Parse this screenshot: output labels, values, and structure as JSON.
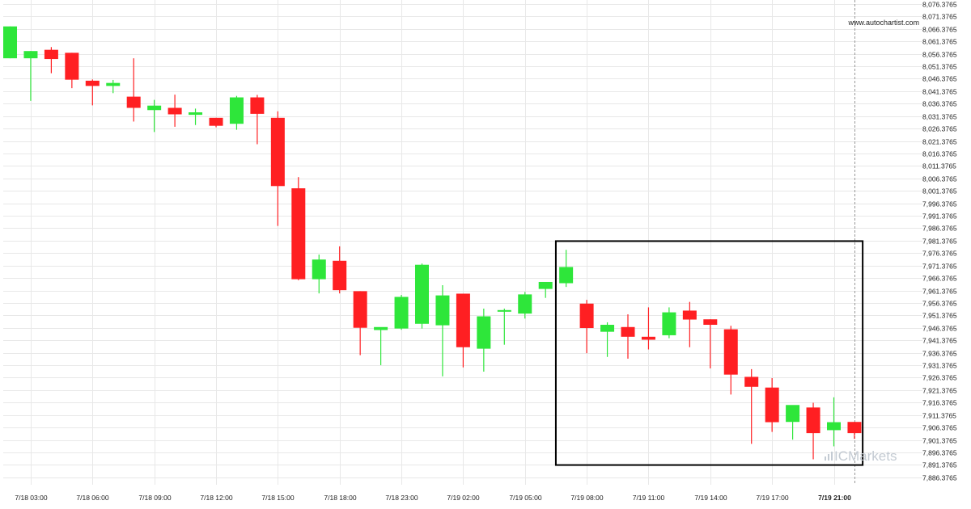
{
  "source_label": "www.autochartist.com",
  "logo": {
    "text": "ICMarkets"
  },
  "colors": {
    "bullish": "#2ee63a",
    "bearish": "#ff1f22",
    "grid": "#e8e8e8",
    "box": "#000000",
    "cursor_line": "#999999"
  },
  "chart_data": {
    "type": "candlestick",
    "ylim": [
      7883.3765,
      8078.0
    ],
    "y_ticks": [
      "8,076.3765",
      "8,071.3765",
      "8,066.3765",
      "8,061.3765",
      "8,056.3765",
      "8,051.3765",
      "8,046.3765",
      "8,041.3765",
      "8,036.3765",
      "8,031.3765",
      "8,026.3765",
      "8,021.3765",
      "8,016.3765",
      "8,011.3765",
      "8,006.3765",
      "8,001.3765",
      "7,996.3765",
      "7,991.3765",
      "7,986.3765",
      "7,981.3765",
      "7,976.3765",
      "7,971.3765",
      "7,966.3765",
      "7,961.3765",
      "7,956.3765",
      "7,951.3765",
      "7,946.3765",
      "7,941.3765",
      "7,936.3765",
      "7,931.3765",
      "7,926.3765",
      "7,921.3765",
      "7,916.3765",
      "7,911.3765",
      "7,906.3765",
      "7,901.3765",
      "7,896.3765",
      "7,891.3765",
      "7,886.3765"
    ],
    "x_ticks": [
      {
        "label": "7/18 03:00",
        "index": 1
      },
      {
        "label": "7/18 06:00",
        "index": 4
      },
      {
        "label": "7/18 09:00",
        "index": 7
      },
      {
        "label": "7/18 12:00",
        "index": 10
      },
      {
        "label": "7/18 15:00",
        "index": 13
      },
      {
        "label": "7/18 18:00",
        "index": 16
      },
      {
        "label": "7/18 23:00",
        "index": 19
      },
      {
        "label": "7/19 02:00",
        "index": 22
      },
      {
        "label": "7/19 05:00",
        "index": 25
      },
      {
        "label": "7/19 08:00",
        "index": 28
      },
      {
        "label": "7/19 11:00",
        "index": 31
      },
      {
        "label": "7/19 14:00",
        "index": 34
      },
      {
        "label": "7/19 17:00",
        "index": 37
      },
      {
        "label": "7/19 21:00",
        "index": 40,
        "bold": true
      }
    ],
    "candles": [
      {
        "o": 8054.6,
        "h": 8067.4,
        "l": 8054.6,
        "c": 8067.4
      },
      {
        "o": 8054.6,
        "h": 8057.5,
        "l": 8037.5,
        "c": 8057.5
      },
      {
        "o": 8058.0,
        "h": 8059.1,
        "l": 8048.6,
        "c": 8054.3
      },
      {
        "o": 8056.8,
        "h": 8056.8,
        "l": 8042.6,
        "c": 8046.0
      },
      {
        "o": 8045.6,
        "h": 8046.1,
        "l": 8035.7,
        "c": 8043.5
      },
      {
        "o": 8043.5,
        "h": 8045.9,
        "l": 8040.6,
        "c": 8044.7
      },
      {
        "o": 8039.2,
        "h": 8054.6,
        "l": 8029.2,
        "c": 8034.7
      },
      {
        "o": 8033.8,
        "h": 8037.9,
        "l": 8025.0,
        "c": 8035.6
      },
      {
        "o": 8034.7,
        "h": 8040.0,
        "l": 8027.1,
        "c": 8032.1
      },
      {
        "o": 8031.9,
        "h": 8034.4,
        "l": 8027.8,
        "c": 8032.9
      },
      {
        "o": 8030.7,
        "h": 8030.7,
        "l": 8026.9,
        "c": 8027.5
      },
      {
        "o": 8028.3,
        "h": 8039.5,
        "l": 8025.9,
        "c": 8038.9
      },
      {
        "o": 8038.9,
        "h": 8039.9,
        "l": 8020.1,
        "c": 8032.3
      },
      {
        "o": 8030.7,
        "h": 8033.3,
        "l": 7987.3,
        "c": 8003.3
      },
      {
        "o": 8002.4,
        "h": 8006.9,
        "l": 7965.5,
        "c": 7965.9
      },
      {
        "o": 7965.9,
        "h": 7975.8,
        "l": 7960.2,
        "c": 7973.8
      },
      {
        "o": 7973.3,
        "h": 7979.1,
        "l": 7960.2,
        "c": 7961.5
      },
      {
        "o": 7961.1,
        "h": 7961.1,
        "l": 7935.4,
        "c": 7946.4
      },
      {
        "o": 7945.5,
        "h": 7946.3,
        "l": 7931.4,
        "c": 7946.7
      },
      {
        "o": 7946.1,
        "h": 7959.6,
        "l": 7945.6,
        "c": 7958.8
      },
      {
        "o": 7948.0,
        "h": 7972.2,
        "l": 7946.1,
        "c": 7971.7
      },
      {
        "o": 7947.4,
        "h": 7963.5,
        "l": 7926.9,
        "c": 7959.4
      },
      {
        "o": 7960.1,
        "h": 7960.1,
        "l": 7930.5,
        "c": 7938.6
      },
      {
        "o": 7938.0,
        "h": 7954.1,
        "l": 7928.8,
        "c": 7951.0
      },
      {
        "o": 7953.2,
        "h": 7954.1,
        "l": 7939.6,
        "c": 7953.5
      },
      {
        "o": 7952.1,
        "h": 7960.8,
        "l": 7950.1,
        "c": 7959.8
      },
      {
        "o": 7962.0,
        "h": 7964.8,
        "l": 7958.4,
        "c": 7964.8
      },
      {
        "o": 7964.3,
        "h": 7977.7,
        "l": 7962.8,
        "c": 7970.8
      },
      {
        "o": 7956.1,
        "h": 7957.6,
        "l": 7936.2,
        "c": 7946.3
      },
      {
        "o": 7944.8,
        "h": 7948.6,
        "l": 7934.7,
        "c": 7947.6
      },
      {
        "o": 7946.7,
        "h": 7951.8,
        "l": 7934.0,
        "c": 7942.8
      },
      {
        "o": 7942.8,
        "h": 7954.6,
        "l": 7937.7,
        "c": 7941.6
      },
      {
        "o": 7943.4,
        "h": 7954.6,
        "l": 7942.2,
        "c": 7952.6
      },
      {
        "o": 7953.3,
        "h": 7956.8,
        "l": 7938.6,
        "c": 7949.7
      },
      {
        "o": 7949.8,
        "h": 7949.8,
        "l": 7930.1,
        "c": 7947.6
      },
      {
        "o": 7945.8,
        "h": 7947.2,
        "l": 7919.6,
        "c": 7927.6
      },
      {
        "o": 7926.7,
        "h": 7929.8,
        "l": 7899.8,
        "c": 7922.7
      },
      {
        "o": 7922.4,
        "h": 7926.2,
        "l": 7904.6,
        "c": 7908.5
      },
      {
        "o": 7908.6,
        "h": 7915.2,
        "l": 7901.5,
        "c": 7915.4
      },
      {
        "o": 7914.4,
        "h": 7916.3,
        "l": 7893.6,
        "c": 7904.1
      },
      {
        "o": 7905.3,
        "h": 7918.5,
        "l": 7898.8,
        "c": 7908.5
      },
      {
        "o": 7908.6,
        "h": 7908.6,
        "l": 7901.8,
        "c": 7904.1
      }
    ],
    "highlight_box": {
      "from_index": 26.5,
      "to_index": 41.4,
      "y_top": 7981.2,
      "y_bottom": 7891.3
    },
    "cursor_index": 41
  }
}
